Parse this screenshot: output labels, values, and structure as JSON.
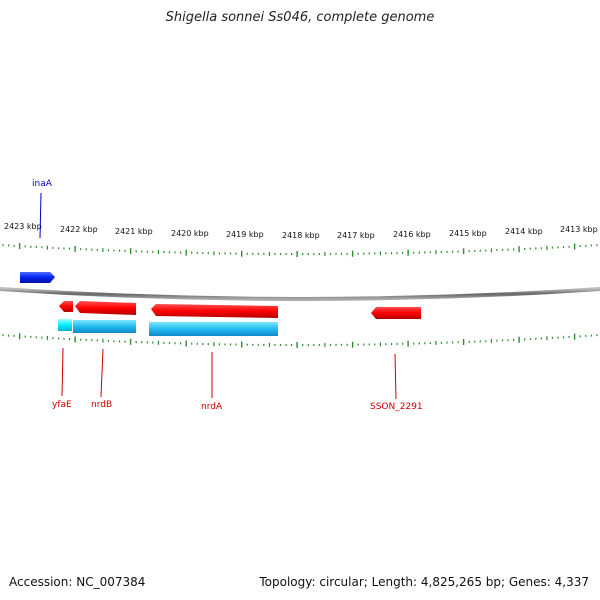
{
  "title": "Shigella sonnei Ss046, complete genome",
  "ruler": {
    "ticks": [
      "2423 kbp",
      "2422 kbp",
      "2421 kbp",
      "2420 kbp",
      "2419 kbp",
      "2418 kbp",
      "2417 kbp",
      "2416 kbp",
      "2415 kbp",
      "2414 kbp",
      "2413 kbp"
    ]
  },
  "genes": [
    {
      "name": "inaA",
      "strand": "+",
      "color": "#0000cc"
    },
    {
      "name": "yfaE",
      "strand": "-",
      "color": "#cc0000"
    },
    {
      "name": "nrdB",
      "strand": "-",
      "color": "#cc0000"
    },
    {
      "name": "nrdA",
      "strand": "-",
      "color": "#cc0000"
    },
    {
      "name": "SSON_2291",
      "strand": "-",
      "color": "#cc0000"
    }
  ],
  "colors": {
    "forward_gene": "#1a1aff",
    "reverse_gene": "#ff0000",
    "cds_feature": "#29b6f6",
    "tick": "#2e8b2e",
    "backbone": "#888888"
  },
  "footer": {
    "accession": "Accession: NC_007384",
    "summary": "Topology: circular; Length: 4,825,265 bp; Genes: 4,337"
  }
}
